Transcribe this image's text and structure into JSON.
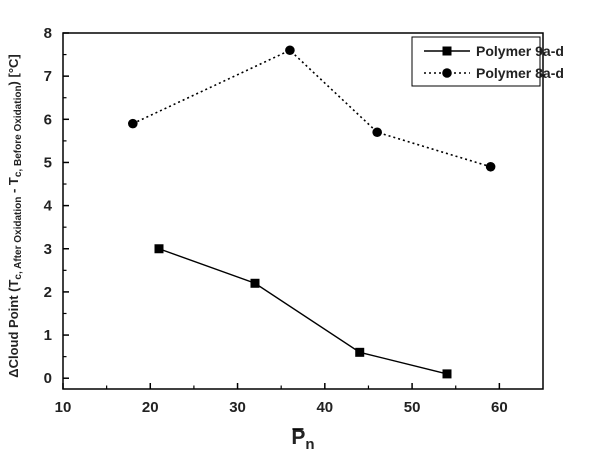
{
  "chart_data": {
    "type": "line",
    "xlabel": {
      "main": "P",
      "sub": "n"
    },
    "ylabel": {
      "prefix": "ΔCloud Point (T",
      "sub1": "c, After Oxidation",
      "mid": " - T",
      "sub2": "c, Before Oxidation",
      "suffix": ") [°C]"
    },
    "xlim": [
      10,
      65
    ],
    "ylim": [
      -0.25,
      8
    ],
    "xticks": [
      10,
      20,
      30,
      40,
      50,
      60
    ],
    "yticks": [
      0,
      1,
      2,
      3,
      4,
      5,
      6,
      7,
      8
    ],
    "grid": false,
    "legend_position": "top-right",
    "series": [
      {
        "name": "Polymer 9a-d",
        "marker": "square",
        "line": "solid",
        "color": "#000000",
        "points": [
          [
            21,
            3.0
          ],
          [
            32,
            2.2
          ],
          [
            44,
            0.6
          ],
          [
            54,
            0.1
          ]
        ]
      },
      {
        "name": "Polymer 8a-d",
        "marker": "circle",
        "line": "dotted",
        "color": "#000000",
        "points": [
          [
            18,
            5.9
          ],
          [
            36,
            7.6
          ],
          [
            46,
            5.7
          ],
          [
            59,
            4.9
          ]
        ]
      }
    ]
  }
}
